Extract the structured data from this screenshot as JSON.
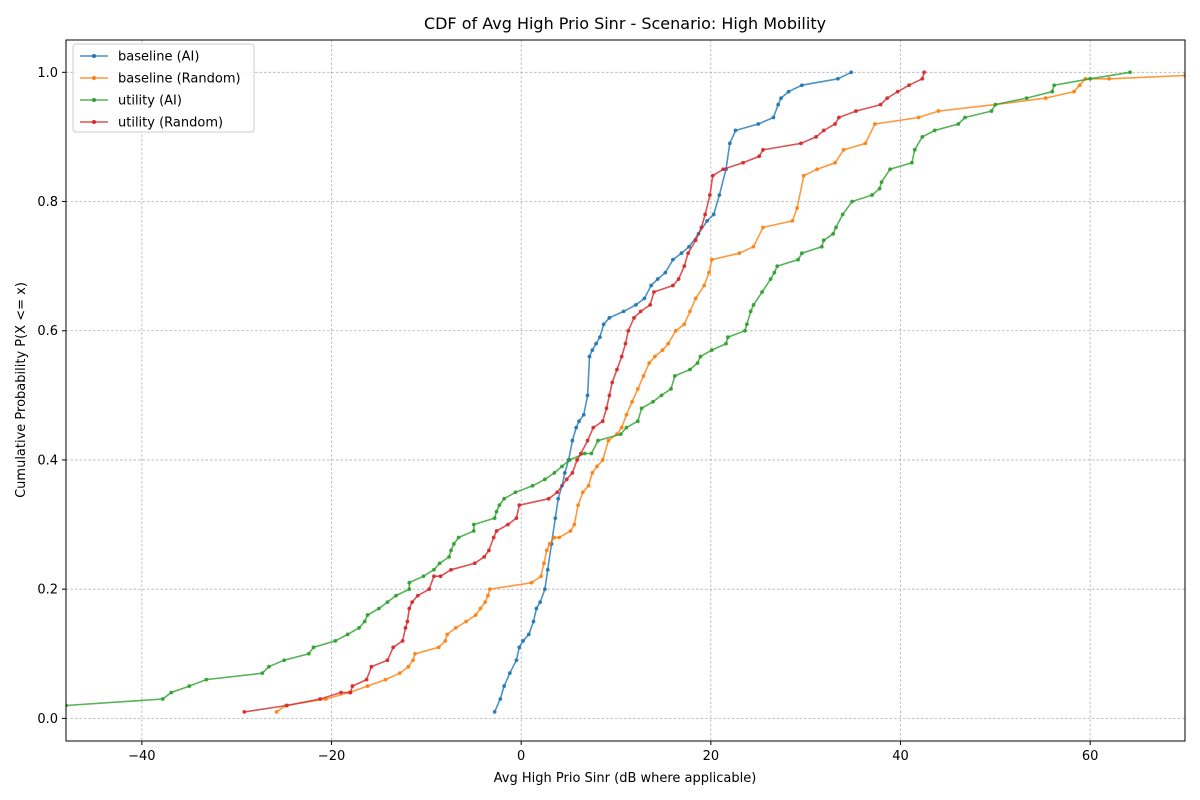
{
  "chart_data": {
    "type": "line",
    "title": "CDF of Avg High Prio Sinr - Scenario: High Mobility",
    "xlabel": "Avg High Prio Sinr (dB where applicable)",
    "ylabel": "Cumulative Probability P(X <= x)",
    "xlim": [
      -48,
      70
    ],
    "ylim": [
      -0.035,
      1.05
    ],
    "xticks": [
      -40,
      -20,
      0,
      20,
      40,
      60
    ],
    "xtick_labels": [
      "−40",
      "−20",
      "0",
      "20",
      "40",
      "60"
    ],
    "yticks": [
      0.0,
      0.2,
      0.4,
      0.6,
      0.8,
      1.0
    ],
    "ytick_labels": [
      "0.0",
      "0.2",
      "0.4",
      "0.6",
      "0.8",
      "1.0"
    ],
    "grid": true,
    "legend_position": "top-left",
    "series": [
      {
        "name": "baseline (AI)",
        "color": "#1f77b4",
        "x": [
          -2.8,
          -2.2,
          -1.8,
          -1.2,
          -0.5,
          -0.2,
          0.2,
          0.8,
          1.3,
          1.6,
          2.0,
          2.5,
          2.8,
          3.2,
          3.6,
          3.9,
          4.3,
          4.6,
          5.0,
          5.4,
          5.8,
          6.1,
          6.6,
          7.0,
          7.2,
          7.5,
          7.9,
          8.3,
          8.7,
          9.3,
          10.8,
          12.1,
          13.0,
          13.7,
          14.4,
          15.2,
          16.0,
          16.9,
          17.7,
          18.7,
          19.6,
          20.3,
          20.9,
          21.6,
          22.0,
          22.6,
          25.0,
          26.6,
          27.1,
          27.4,
          28.2,
          29.6,
          33.4,
          34.8
        ],
        "y": [
          0.01,
          0.03,
          0.05,
          0.07,
          0.09,
          0.11,
          0.12,
          0.13,
          0.15,
          0.17,
          0.18,
          0.2,
          0.23,
          0.27,
          0.31,
          0.34,
          0.36,
          0.38,
          0.4,
          0.43,
          0.45,
          0.46,
          0.47,
          0.5,
          0.56,
          0.57,
          0.58,
          0.59,
          0.61,
          0.62,
          0.63,
          0.64,
          0.65,
          0.67,
          0.68,
          0.69,
          0.71,
          0.72,
          0.73,
          0.75,
          0.77,
          0.78,
          0.81,
          0.85,
          0.89,
          0.91,
          0.92,
          0.93,
          0.95,
          0.96,
          0.97,
          0.98,
          0.99,
          1.0
        ]
      },
      {
        "name": "baseline (Random)",
        "color": "#ff7f0e",
        "x": [
          -25.8,
          -24.8,
          -20.6,
          -18.1,
          -16.2,
          -14.3,
          -12.8,
          -11.9,
          -11.4,
          -11.2,
          -8.7,
          -8.0,
          -7.8,
          -6.9,
          -5.8,
          -4.8,
          -4.3,
          -3.8,
          -3.5,
          -3.3,
          1.1,
          2.1,
          2.4,
          2.7,
          3.0,
          3.5,
          4.0,
          5.2,
          5.6,
          6.0,
          6.5,
          7.1,
          7.5,
          8.0,
          8.6,
          9.2,
          10.1,
          10.6,
          11.1,
          11.7,
          12.3,
          12.9,
          13.5,
          14.1,
          14.9,
          15.5,
          16.3,
          17.2,
          17.8,
          18.4,
          19.3,
          19.8,
          20.1,
          23.0,
          24.5,
          25.5,
          28.6,
          29.1,
          29.8,
          31.2,
          33.1,
          34.0,
          36.3,
          37.3,
          41.9,
          44.0,
          50.0,
          55.3,
          58.3,
          58.9,
          59.5,
          62.0,
          70.0
        ],
        "y": [
          0.01,
          0.02,
          0.03,
          0.04,
          0.05,
          0.06,
          0.07,
          0.08,
          0.09,
          0.1,
          0.11,
          0.12,
          0.13,
          0.14,
          0.15,
          0.16,
          0.17,
          0.18,
          0.19,
          0.2,
          0.21,
          0.22,
          0.24,
          0.26,
          0.27,
          0.28,
          0.28,
          0.29,
          0.3,
          0.33,
          0.35,
          0.36,
          0.38,
          0.39,
          0.4,
          0.43,
          0.44,
          0.45,
          0.47,
          0.49,
          0.51,
          0.53,
          0.55,
          0.56,
          0.57,
          0.58,
          0.6,
          0.61,
          0.63,
          0.65,
          0.67,
          0.69,
          0.71,
          0.72,
          0.73,
          0.76,
          0.77,
          0.79,
          0.84,
          0.85,
          0.86,
          0.88,
          0.89,
          0.92,
          0.93,
          0.94,
          0.95,
          0.96,
          0.97,
          0.98,
          0.99,
          0.99,
          0.995
        ]
      },
      {
        "name": "utility (AI)",
        "color": "#2ca02c",
        "x": [
          -48.0,
          -37.8,
          -36.9,
          -35.0,
          -33.2,
          -27.3,
          -26.6,
          -25.0,
          -22.4,
          -21.9,
          -19.6,
          -18.3,
          -17.1,
          -16.5,
          -16.2,
          -15.0,
          -14.1,
          -13.2,
          -11.8,
          -11.8,
          -10.3,
          -9.2,
          -8.6,
          -7.6,
          -7.4,
          -7.1,
          -6.6,
          -5.0,
          -5.0,
          -2.8,
          -2.6,
          -2.3,
          -1.8,
          -0.6,
          1.2,
          2.5,
          3.5,
          4.3,
          5.1,
          6.7,
          7.4,
          8.1,
          10.5,
          11.1,
          12.3,
          12.7,
          13.9,
          14.8,
          15.8,
          16.2,
          17.8,
          18.6,
          18.9,
          20.1,
          21.6,
          21.8,
          23.6,
          23.8,
          24.2,
          24.5,
          25.4,
          26.3,
          26.7,
          27.0,
          29.2,
          29.6,
          31.7,
          31.9,
          32.9,
          33.2,
          33.9,
          34.9,
          37.0,
          37.8,
          38.0,
          38.9,
          41.2,
          41.5,
          42.3,
          43.6,
          46.1,
          46.8,
          49.6,
          50.0,
          53.3,
          56.0,
          56.2,
          60.0,
          64.2
        ],
        "y": [
          0.02,
          0.03,
          0.04,
          0.05,
          0.06,
          0.07,
          0.08,
          0.09,
          0.1,
          0.11,
          0.12,
          0.13,
          0.14,
          0.15,
          0.16,
          0.17,
          0.18,
          0.19,
          0.2,
          0.21,
          0.22,
          0.23,
          0.24,
          0.25,
          0.26,
          0.27,
          0.28,
          0.29,
          0.3,
          0.31,
          0.32,
          0.33,
          0.34,
          0.35,
          0.36,
          0.37,
          0.38,
          0.39,
          0.4,
          0.41,
          0.41,
          0.43,
          0.44,
          0.45,
          0.46,
          0.48,
          0.49,
          0.5,
          0.51,
          0.53,
          0.54,
          0.55,
          0.56,
          0.57,
          0.58,
          0.59,
          0.6,
          0.61,
          0.63,
          0.64,
          0.66,
          0.68,
          0.69,
          0.7,
          0.71,
          0.72,
          0.73,
          0.74,
          0.75,
          0.76,
          0.78,
          0.8,
          0.81,
          0.82,
          0.83,
          0.85,
          0.86,
          0.88,
          0.9,
          0.91,
          0.92,
          0.93,
          0.94,
          0.95,
          0.96,
          0.97,
          0.98,
          0.99,
          1.0
        ]
      },
      {
        "name": "utility (Random)",
        "color": "#d62728",
        "x": [
          -29.2,
          -24.7,
          -21.2,
          -19.0,
          -18.0,
          -17.8,
          -16.3,
          -15.8,
          -14.1,
          -13.5,
          -12.5,
          -12.2,
          -12.0,
          -11.8,
          -11.5,
          -10.9,
          -9.7,
          -9.2,
          -8.5,
          -7.4,
          -4.9,
          -3.9,
          -3.4,
          -2.9,
          -2.6,
          -1.4,
          -0.5,
          -0.2,
          2.9,
          3.8,
          4.8,
          5.4,
          5.9,
          6.3,
          7.0,
          7.6,
          8.6,
          9.0,
          9.3,
          9.6,
          10.1,
          10.6,
          11.0,
          11.3,
          11.9,
          12.6,
          13.6,
          14.0,
          16.0,
          16.6,
          17.2,
          17.6,
          18.4,
          19.0,
          19.4,
          19.9,
          20.2,
          21.3,
          23.4,
          25.1,
          25.5,
          29.5,
          31.1,
          31.9,
          33.1,
          33.5,
          35.3,
          37.9,
          38.6,
          39.7,
          40.9,
          42.3,
          42.5
        ],
        "y": [
          0.01,
          0.02,
          0.03,
          0.04,
          0.04,
          0.05,
          0.06,
          0.08,
          0.09,
          0.11,
          0.12,
          0.14,
          0.15,
          0.17,
          0.18,
          0.19,
          0.2,
          0.22,
          0.22,
          0.23,
          0.24,
          0.25,
          0.26,
          0.28,
          0.29,
          0.3,
          0.31,
          0.33,
          0.34,
          0.35,
          0.37,
          0.38,
          0.4,
          0.41,
          0.43,
          0.45,
          0.46,
          0.48,
          0.5,
          0.52,
          0.54,
          0.56,
          0.58,
          0.6,
          0.62,
          0.63,
          0.64,
          0.66,
          0.67,
          0.68,
          0.7,
          0.72,
          0.74,
          0.76,
          0.78,
          0.81,
          0.84,
          0.85,
          0.86,
          0.87,
          0.88,
          0.89,
          0.9,
          0.91,
          0.92,
          0.93,
          0.94,
          0.95,
          0.96,
          0.97,
          0.98,
          0.99,
          1.0
        ]
      }
    ]
  }
}
